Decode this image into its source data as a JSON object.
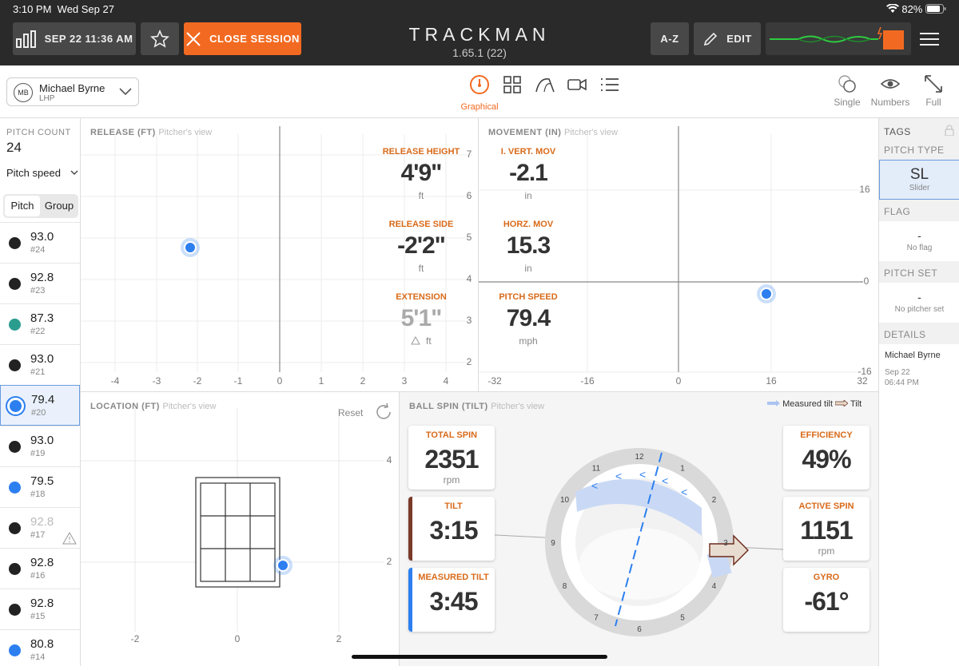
{
  "status": {
    "time": "3:10 PM",
    "date": "Wed Sep 27",
    "battery": "82%"
  },
  "toolbar": {
    "session": "SEP 22 11:36 AM",
    "close": "CLOSE SESSION",
    "brand": "TRACKMAN",
    "version": "1.65.1 (22)",
    "az": "A-Z",
    "edit": "EDIT"
  },
  "player": {
    "initials": "MB",
    "name": "Michael Byrne",
    "hand": "LHP"
  },
  "views": {
    "active_label": "Graphical",
    "single": "Single",
    "numbers": "Numbers",
    "full": "Full"
  },
  "left": {
    "pitch_count_label": "PITCH COUNT",
    "pitch_count": "24",
    "sort": "Pitch speed",
    "seg_pitch": "Pitch",
    "seg_group": "Group",
    "pitches": [
      {
        "v": "93.0",
        "id": "#24",
        "c": "#222"
      },
      {
        "v": "92.8",
        "id": "#23",
        "c": "#222"
      },
      {
        "v": "87.3",
        "id": "#22",
        "c": "#2a9d8f"
      },
      {
        "v": "93.0",
        "id": "#21",
        "c": "#222"
      },
      {
        "v": "79.4",
        "id": "#20",
        "c": "#2d7ff0"
      },
      {
        "v": "93.0",
        "id": "#19",
        "c": "#222"
      },
      {
        "v": "79.5",
        "id": "#18",
        "c": "#2d7ff0"
      },
      {
        "v": "92.8",
        "id": "#17",
        "c": "#222"
      },
      {
        "v": "92.8",
        "id": "#16",
        "c": "#222"
      },
      {
        "v": "92.8",
        "id": "#15",
        "c": "#222"
      },
      {
        "v": "80.8",
        "id": "#14",
        "c": "#2d7ff0"
      }
    ]
  },
  "release": {
    "title": "RELEASE (FT)",
    "sub": "Pitcher's view",
    "xticks": [
      "-4",
      "-3",
      "-2",
      "-1",
      "0",
      "1",
      "2",
      "3",
      "4"
    ],
    "yticks": [
      "7",
      "6",
      "5",
      "4",
      "3",
      "2"
    ],
    "height_label": "RELEASE HEIGHT",
    "height": "4'9\"",
    "height_unit": "ft",
    "side_label": "RELEASE SIDE",
    "side": "-2'2\"",
    "side_unit": "ft",
    "ext_label": "EXTENSION",
    "ext": "5'1\"",
    "ext_unit": "ft"
  },
  "movement": {
    "title": "MOVEMENT (IN)",
    "sub": "Pitcher's view",
    "xticks": [
      "-32",
      "-16",
      "0",
      "16",
      "32"
    ],
    "yticks": [
      "16",
      "-0",
      "-16"
    ],
    "ivb_label": "I. VERT. MOV",
    "ivb": "-2.1",
    "ivb_unit": "in",
    "hb_label": "HORZ. MOV",
    "hb": "15.3",
    "hb_unit": "in",
    "speed_label": "PITCH SPEED",
    "speed": "79.4",
    "speed_unit": "mph"
  },
  "location": {
    "title": "LOCATION (FT)",
    "sub": "Pitcher's view",
    "reset": "Reset",
    "xticks": [
      "-2",
      "0",
      "2"
    ],
    "yticks": [
      "4",
      "2"
    ]
  },
  "spin": {
    "title": "BALL SPIN (TILT)",
    "sub": "Pitcher's view",
    "legend_measured": "Measured tilt",
    "legend_tilt": "Tilt",
    "total_label": "TOTAL SPIN",
    "total": "2351",
    "total_unit": "rpm",
    "tilt_label": "TILT",
    "tilt": "3:15",
    "mtilt_label": "MEASURED TILT",
    "mtilt": "3:45",
    "eff_label": "EFFICIENCY",
    "eff": "49%",
    "active_label": "ACTIVE SPIN",
    "active": "1151",
    "active_unit": "rpm",
    "gyro_label": "GYRO",
    "gyro": "-61°",
    "clock": [
      "12",
      "1",
      "2",
      "3",
      "4",
      "5",
      "6",
      "7",
      "8",
      "9",
      "10",
      "11"
    ]
  },
  "tags": {
    "title": "TAGS",
    "pitch_type_label": "PITCH TYPE",
    "pitch_type": "SL",
    "pitch_type_name": "Slider",
    "flag_label": "FLAG",
    "flag_val": "-",
    "flag_text": "No flag",
    "set_label": "PITCH SET",
    "set_val": "-",
    "set_text": "No pitcher set",
    "details_label": "DETAILS",
    "details_name": "Michael Byrne",
    "details_date": "Sep 22",
    "details_time": "06:44 PM"
  }
}
